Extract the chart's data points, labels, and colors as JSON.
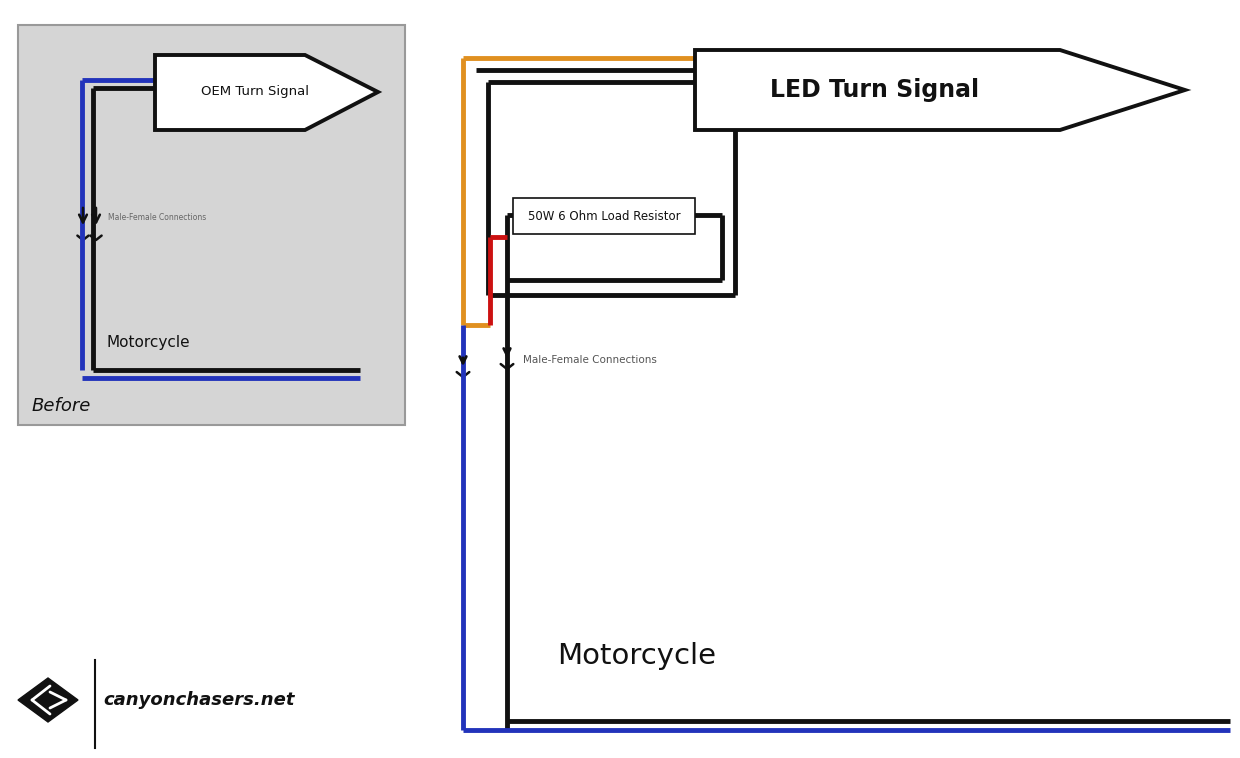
{
  "bg_color": "#ffffff",
  "before_bg": "#d5d5d5",
  "black": "#111111",
  "blue": "#2233bb",
  "orange": "#e09020",
  "red": "#cc1111",
  "oem_label": "OEM Turn Signal",
  "led_label": "LED Turn Signal",
  "resistor_label": "50W 6 Ohm Load Resistor",
  "motorcycle_label": "Motorcycle",
  "mf_label": "Male-Female Connections",
  "before_label": "Before",
  "brand_label": "canyonchasers.net",
  "lw": 3.5
}
